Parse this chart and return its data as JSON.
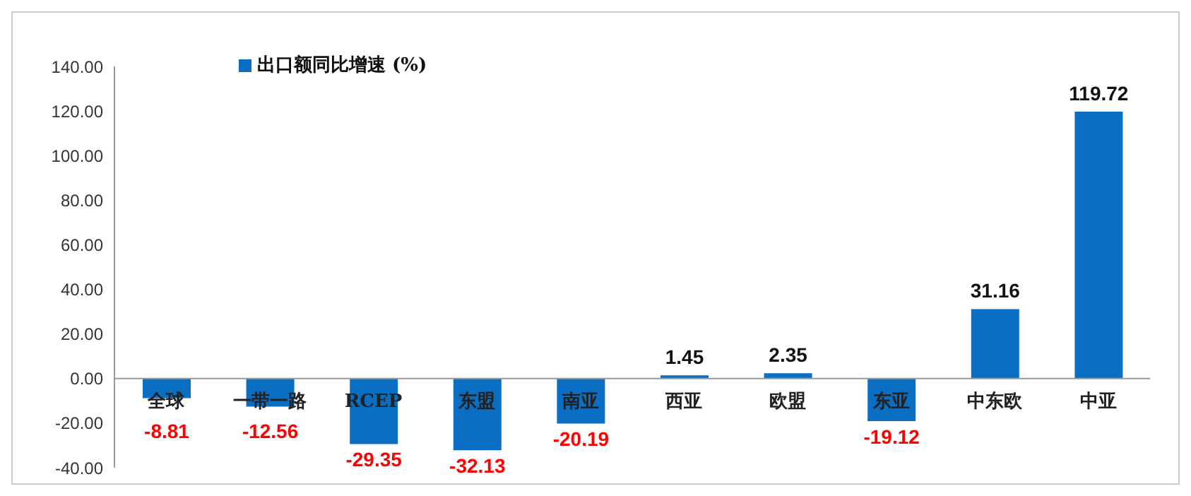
{
  "chart_data": {
    "type": "bar",
    "categories": [
      "全球",
      "一带一路",
      "RCEP",
      "东盟",
      "南亚",
      "西亚",
      "欧盟",
      "东亚",
      "中东欧",
      "中亚"
    ],
    "series": [
      {
        "name": "出口额同比增速 (%)",
        "color": "#0a6fc2",
        "values": [
          -8.81,
          -12.56,
          -29.35,
          -32.13,
          -20.19,
          1.45,
          2.35,
          -19.12,
          31.16,
          119.72
        ]
      }
    ],
    "ylim": [
      -40,
      140
    ],
    "yticks": [
      {
        "value": -40,
        "label": "-40.00"
      },
      {
        "value": -20,
        "label": "-20.00"
      },
      {
        "value": 0,
        "label": "0.00"
      },
      {
        "value": 20,
        "label": "20.00"
      },
      {
        "value": 40,
        "label": "40.00"
      },
      {
        "value": 60,
        "label": "60.00"
      },
      {
        "value": 80,
        "label": "80.00"
      },
      {
        "value": 100,
        "label": "100.00"
      },
      {
        "value": 120,
        "label": "120.00"
      },
      {
        "value": 140,
        "label": "140.00"
      }
    ],
    "data_labels": true,
    "grid": false,
    "legend": "top left"
  }
}
